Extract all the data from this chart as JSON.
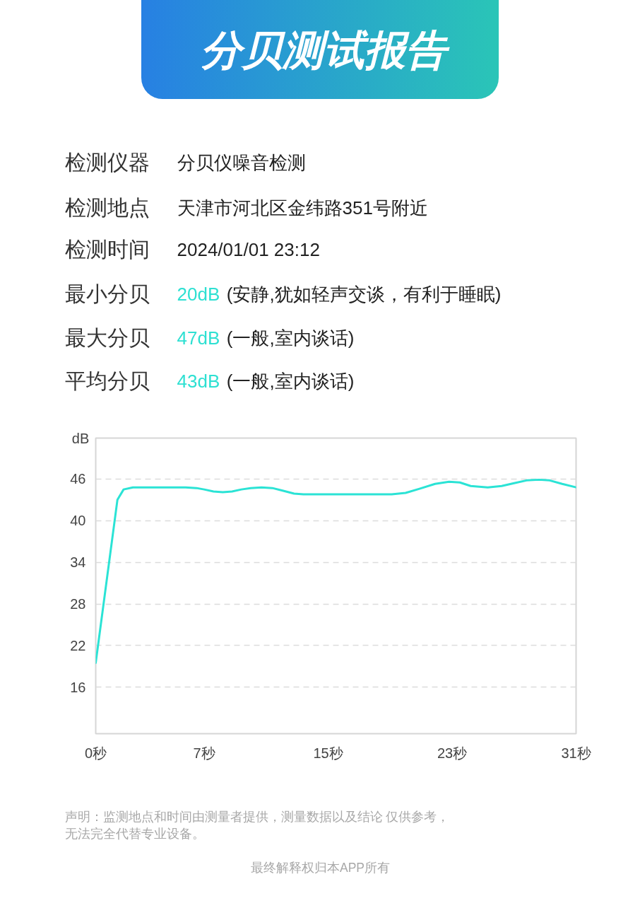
{
  "chart_data": {
    "type": "line",
    "title": "分贝测试报告",
    "ylabel": "dB",
    "x": [
      0,
      1.4,
      1.8,
      2.4,
      3,
      4,
      5,
      5.8,
      6.5,
      7,
      7.6,
      8.2,
      8.8,
      9.4,
      10,
      10.7,
      11.4,
      12.1,
      12.8,
      13.4,
      15,
      17,
      19.1,
      20,
      20.9,
      21.9,
      22.8,
      23.5,
      24.2,
      25.3,
      26.2,
      27,
      27.8,
      28.6,
      29.3,
      30.1,
      31
    ],
    "series": [
      {
        "color": "#2be3d5",
        "values": [
          19.5,
          43.0,
          44.5,
          44.8,
          44.8,
          44.8,
          44.8,
          44.8,
          44.7,
          44.5,
          44.2,
          44.1,
          44.2,
          44.5,
          44.7,
          44.8,
          44.7,
          44.3,
          43.9,
          43.8,
          43.8,
          43.8,
          43.8,
          44.0,
          44.6,
          45.3,
          45.6,
          45.5,
          45.0,
          44.8,
          45.0,
          45.4,
          45.8,
          45.9,
          45.8,
          45.3,
          44.8
        ]
      }
    ],
    "xlim": [
      0,
      31
    ],
    "xticks": [
      {
        "value": 0,
        "label": "0秒"
      },
      {
        "value": 7,
        "label": "7秒"
      },
      {
        "value": 15,
        "label": "15秒"
      },
      {
        "value": 23,
        "label": "23秒"
      },
      {
        "value": 31,
        "label": "31秒"
      }
    ],
    "ylim": [
      9.3,
      51.9
    ],
    "yticks": [
      16,
      22,
      28,
      34,
      40,
      46
    ],
    "grid": "y",
    "annotations": [
      "检测仪器",
      "分贝仪噪音检测",
      "检测地点",
      "天津市河北区金纬路351号附近",
      "检测时间",
      "2024/01/01 23:12",
      "最小分贝",
      "20dB",
      "(安静,犹如轻声交谈，有利于睡眠)",
      "最大分贝",
      "47dB",
      "(一般,室内谈话)",
      "平均分贝",
      "43dB",
      "(一般,室内谈话)",
      "声明：监测地点和时间由测量者提供，测量数据以及结论 仅供参考，无法完全代替专业设备。",
      "最终解释权归本APP所有"
    ]
  }
}
